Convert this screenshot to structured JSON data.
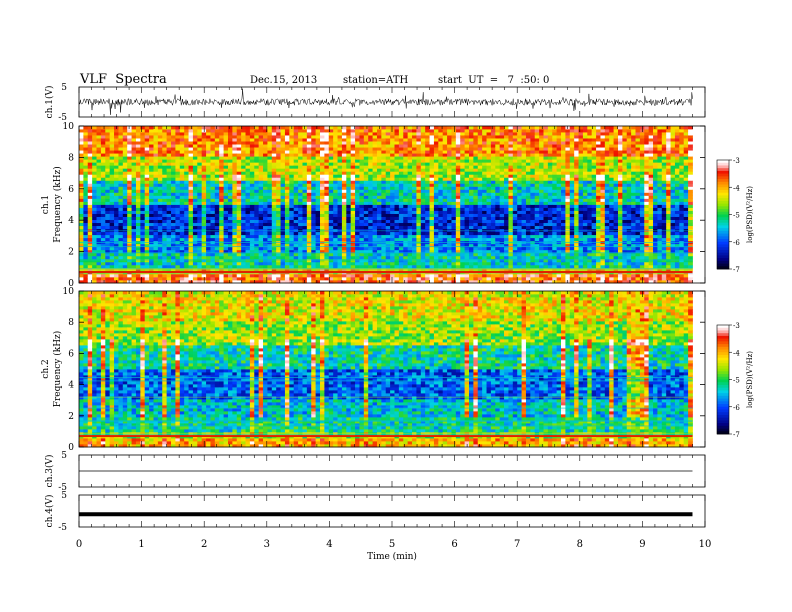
{
  "header": {
    "title": "VLF  Spectra",
    "date": "Dec.15, 2013",
    "station": "station=ATH",
    "start": "start  UT  =   7  :50: 0"
  },
  "chart_data": {
    "type": "heatmap",
    "xlabel": "Time  (min)",
    "xlim": [
      0,
      10
    ],
    "x_ticks": [
      "0",
      "1",
      "2",
      "3",
      "4",
      "5",
      "6",
      "7",
      "8",
      "9",
      "10"
    ],
    "data_end_min": 9.8,
    "panels": [
      {
        "id": "ch1",
        "type": "line",
        "ylabel": "ch.1(V)",
        "ylim": [
          -5,
          5
        ],
        "y_ticks": [
          "5",
          "-5"
        ],
        "trace": "noisy-broadband"
      },
      {
        "id": "spec1",
        "type": "heatmap",
        "ylabel_top": "ch.1",
        "ylabel": "Frequency  (kHz)",
        "ylim": [
          0,
          10
        ],
        "y_ticks": [
          "10",
          "8",
          "6",
          "4",
          "2",
          "0"
        ],
        "colorbar": {
          "label": "log(PSD)(V²/Hz)",
          "range": [
            -7,
            -3
          ],
          "ticks": [
            "-3",
            "-4",
            "-5",
            "-6",
            "-7"
          ]
        },
        "band_mean_log_psd": [
          {
            "f": [
              0,
              0.5
            ],
            "v": -3.6
          },
          {
            "f": [
              0.5,
              1.0
            ],
            "v": -4.2
          },
          {
            "f": [
              1.0,
              2.0
            ],
            "v": -5.3
          },
          {
            "f": [
              2.0,
              3.0
            ],
            "v": -5.7
          },
          {
            "f": [
              3.0,
              5.0
            ],
            "v": -6.2
          },
          {
            "f": [
              5.0,
              6.5
            ],
            "v": -5.3
          },
          {
            "f": [
              6.5,
              8.0
            ],
            "v": -4.5
          },
          {
            "f": [
              8.0,
              10.0
            ],
            "v": -3.8
          }
        ]
      },
      {
        "id": "spec2",
        "type": "heatmap",
        "ylabel_top": "ch.2",
        "ylabel": "Frequency  (kHz)",
        "ylim": [
          0,
          10
        ],
        "y_ticks": [
          "10",
          "8",
          "6",
          "4",
          "2",
          "0"
        ],
        "colorbar": {
          "label": "log(PSD)(V²/Hz)",
          "range": [
            -7,
            -3
          ],
          "ticks": [
            "-3",
            "-4",
            "-5",
            "-6",
            "-7"
          ]
        },
        "band_mean_log_psd": [
          {
            "f": [
              0,
              0.5
            ],
            "v": -4.0
          },
          {
            "f": [
              0.5,
              1.0
            ],
            "v": -4.6
          },
          {
            "f": [
              1.0,
              2.0
            ],
            "v": -5.2
          },
          {
            "f": [
              2.0,
              3.0
            ],
            "v": -5.4
          },
          {
            "f": [
              3.0,
              5.0
            ],
            "v": -5.9
          },
          {
            "f": [
              5.0,
              6.5
            ],
            "v": -5.2
          },
          {
            "f": [
              6.5,
              8.0
            ],
            "v": -4.6
          },
          {
            "f": [
              8.0,
              10.0
            ],
            "v": -4.3
          }
        ]
      },
      {
        "id": "ch3",
        "type": "line",
        "ylabel": "ch.3(V)",
        "ylim": [
          -5,
          5
        ],
        "y_ticks": [
          "5",
          "-5"
        ],
        "mean_value": 0.0
      },
      {
        "id": "ch4",
        "type": "line",
        "ylabel": "ch.4(V)",
        "ylim": [
          -5,
          5
        ],
        "y_ticks": [
          "5",
          "-5"
        ],
        "mean_value": -1.0
      }
    ]
  }
}
